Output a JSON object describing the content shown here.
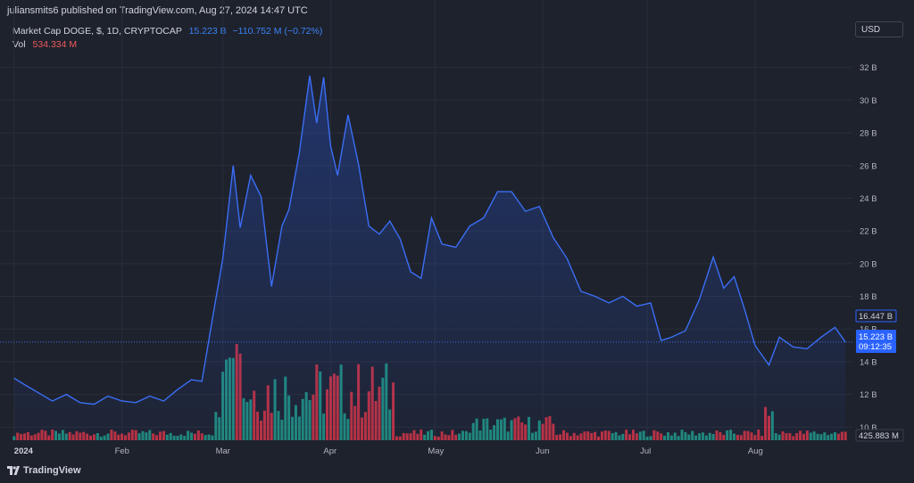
{
  "header": {
    "published_line": "juliansmits6 published on TradingView.com, Aug 27, 2024 14:47 UTC",
    "symbol": "Market Cap DOGE, $, 1D, CRYPTOCAP",
    "last_value": "15.223 B",
    "change": "−110.752 M (−0.72%)",
    "volume_label": "Vol",
    "volume_value": "534.334 M",
    "currency": "USD"
  },
  "footer": {
    "brand": "TradingView"
  },
  "colors": {
    "background": "#1e222d",
    "grid": "#2a2e39",
    "line": "#3b6ef5",
    "volume_up": "#22ab94",
    "volume_down": "#f23645",
    "price_tag": "#2962ff"
  },
  "chart_data": {
    "type": "area",
    "title": "Market Cap DOGE, $, 1D, CRYPTOCAP",
    "y_ticks": [
      "32 B",
      "30 B",
      "28 B",
      "26 B",
      "24 B",
      "22 B",
      "20 B",
      "18 B",
      "16 B",
      "14 B",
      "12 B",
      "10 B"
    ],
    "ylim": [
      9.2,
      33.4
    ],
    "x_ticks": [
      "2024",
      "Feb",
      "Mar",
      "Apr",
      "May",
      "Jun",
      "Jul",
      "Aug"
    ],
    "x_range": [
      "2023-12-30",
      "2024-08-29"
    ],
    "grid": true,
    "price_labels": {
      "high_marker": "16.447 B",
      "last_price": "15.223 B",
      "countdown": "09:12:35",
      "volume_last": "425.883 M"
    },
    "series": [
      {
        "x": [
          "2024-01-01",
          "2024-01-04",
          "2024-01-08",
          "2024-01-12",
          "2024-01-16",
          "2024-01-20",
          "2024-01-24",
          "2024-01-28",
          "2024-02-01",
          "2024-02-05",
          "2024-02-09",
          "2024-02-13",
          "2024-02-17",
          "2024-02-21",
          "2024-02-24",
          "2024-02-27",
          "2024-03-01",
          "2024-03-04",
          "2024-03-06",
          "2024-03-09",
          "2024-03-12",
          "2024-03-15",
          "2024-03-18",
          "2024-03-20",
          "2024-03-23",
          "2024-03-26",
          "2024-03-28",
          "2024-03-30",
          "2024-04-01",
          "2024-04-03",
          "2024-04-06",
          "2024-04-09",
          "2024-04-12",
          "2024-04-15",
          "2024-04-18",
          "2024-04-21",
          "2024-04-24",
          "2024-04-27",
          "2024-04-30",
          "2024-05-03",
          "2024-05-07",
          "2024-05-11",
          "2024-05-15",
          "2024-05-19",
          "2024-05-23",
          "2024-05-27",
          "2024-05-31",
          "2024-06-04",
          "2024-06-08",
          "2024-06-12",
          "2024-06-16",
          "2024-06-20",
          "2024-06-24",
          "2024-06-28",
          "2024-07-02",
          "2024-07-05",
          "2024-07-08",
          "2024-07-12",
          "2024-07-16",
          "2024-07-20",
          "2024-07-23",
          "2024-07-26",
          "2024-07-29",
          "2024-08-01",
          "2024-08-05",
          "2024-08-08",
          "2024-08-12",
          "2024-08-16",
          "2024-08-20",
          "2024-08-24",
          "2024-08-27"
        ],
        "values": [
          13.0,
          12.6,
          12.1,
          11.6,
          12.0,
          11.5,
          11.4,
          11.9,
          11.6,
          11.5,
          11.9,
          11.6,
          12.3,
          12.9,
          12.8,
          16.6,
          20.3,
          26.0,
          22.2,
          25.4,
          24.1,
          18.6,
          22.3,
          23.3,
          26.8,
          31.5,
          28.6,
          31.4,
          27.2,
          25.4,
          29.1,
          26.1,
          22.3,
          21.8,
          22.6,
          21.5,
          19.5,
          19.1,
          22.8,
          21.2,
          21.0,
          22.3,
          22.8,
          24.4,
          24.4,
          23.2,
          23.5,
          21.6,
          20.3,
          18.3,
          18.0,
          17.6,
          18.0,
          17.4,
          17.6,
          15.3,
          15.5,
          15.9,
          17.8,
          20.4,
          18.5,
          19.2,
          17.2,
          15.0,
          13.8,
          15.5,
          14.9,
          14.8,
          15.5,
          16.1,
          15.2
        ]
      }
    ]
  }
}
